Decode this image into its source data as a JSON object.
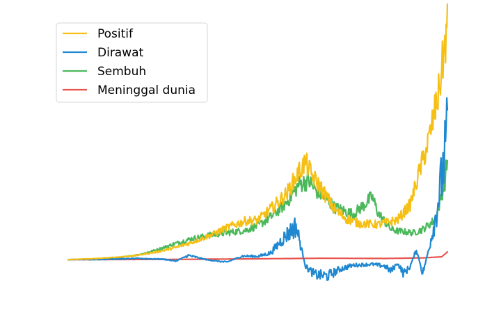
{
  "chart_data": {
    "type": "line",
    "title": "",
    "xlabel": "",
    "ylabel": "",
    "axes_visible": false,
    "legend_position": "top-left",
    "x_points": 600,
    "ylim": [
      -2000,
      10500
    ],
    "series": [
      {
        "name": "Positif",
        "color": "#f5bf14",
        "keyframes": [
          [
            0,
            0
          ],
          [
            40,
            40
          ],
          [
            80,
            110
          ],
          [
            110,
            190
          ],
          [
            140,
            330
          ],
          [
            170,
            520
          ],
          [
            195,
            740
          ],
          [
            225,
            1050
          ],
          [
            255,
            1420
          ],
          [
            280,
            1660
          ],
          [
            300,
            1700
          ],
          [
            320,
            2170
          ],
          [
            345,
            2830
          ],
          [
            365,
            3800
          ],
          [
            375,
            4200
          ],
          [
            385,
            3600
          ],
          [
            400,
            3050
          ],
          [
            420,
            2180
          ],
          [
            440,
            1750
          ],
          [
            460,
            1550
          ],
          [
            490,
            1510
          ],
          [
            520,
            1700
          ],
          [
            540,
            2350
          ],
          [
            555,
            3800
          ],
          [
            570,
            5200
          ],
          [
            585,
            7150
          ],
          [
            599,
            10050
          ]
        ]
      },
      {
        "name": "Dirawat",
        "color": "#1f88d0",
        "keyframes": [
          [
            0,
            0
          ],
          [
            60,
            20
          ],
          [
            110,
            50
          ],
          [
            150,
            20
          ],
          [
            170,
            -60
          ],
          [
            190,
            180
          ],
          [
            220,
            -10
          ],
          [
            250,
            -110
          ],
          [
            275,
            150
          ],
          [
            300,
            140
          ],
          [
            320,
            290
          ],
          [
            340,
            930
          ],
          [
            360,
            1450
          ],
          [
            375,
            -300
          ],
          [
            390,
            -650
          ],
          [
            410,
            -700
          ],
          [
            430,
            -400
          ],
          [
            450,
            -240
          ],
          [
            480,
            -200
          ],
          [
            500,
            -280
          ],
          [
            510,
            -500
          ],
          [
            520,
            -150
          ],
          [
            530,
            -600
          ],
          [
            540,
            -300
          ],
          [
            550,
            440
          ],
          [
            560,
            -600
          ],
          [
            570,
            500
          ],
          [
            580,
            1800
          ],
          [
            590,
            3500
          ],
          [
            599,
            5420
          ]
        ]
      },
      {
        "name": "Sembuh",
        "color": "#4cb85c",
        "keyframes": [
          [
            0,
            0
          ],
          [
            40,
            30
          ],
          [
            80,
            90
          ],
          [
            110,
            200
          ],
          [
            140,
            420
          ],
          [
            170,
            700
          ],
          [
            195,
            900
          ],
          [
            225,
            1060
          ],
          [
            255,
            1170
          ],
          [
            280,
            1260
          ],
          [
            300,
            1470
          ],
          [
            320,
            1830
          ],
          [
            345,
            2460
          ],
          [
            365,
            3250
          ],
          [
            380,
            3380
          ],
          [
            390,
            3000
          ],
          [
            410,
            2580
          ],
          [
            420,
            2250
          ],
          [
            430,
            2150
          ],
          [
            450,
            1950
          ],
          [
            470,
            2420
          ],
          [
            480,
            2700
          ],
          [
            490,
            1980
          ],
          [
            510,
            1300
          ],
          [
            520,
            1230
          ],
          [
            530,
            1200
          ],
          [
            545,
            1150
          ],
          [
            560,
            1300
          ],
          [
            580,
            1720
          ],
          [
            595,
            3350
          ],
          [
            599,
            4330
          ]
        ]
      },
      {
        "name": "Meninggal dunia",
        "color": "#e8554e",
        "keyframes": [
          [
            0,
            0
          ],
          [
            100,
            5
          ],
          [
            200,
            15
          ],
          [
            300,
            35
          ],
          [
            400,
            60
          ],
          [
            500,
            50
          ],
          [
            560,
            75
          ],
          [
            590,
            120
          ],
          [
            599,
            330
          ]
        ]
      }
    ]
  }
}
